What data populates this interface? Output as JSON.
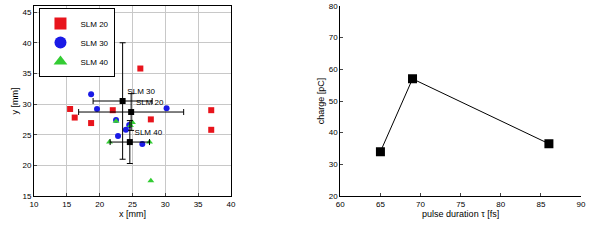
{
  "chart_data": [
    {
      "type": "scatter",
      "xlabel": "x [mm]",
      "ylabel": "y [mm]",
      "xlim": [
        10,
        40
      ],
      "ylim": [
        15,
        46
      ],
      "xticks": [
        10,
        15,
        20,
        25,
        30,
        35,
        40
      ],
      "yticks": [
        15,
        20,
        25,
        30,
        35,
        40,
        45
      ],
      "grid": true,
      "legend": "top left",
      "series": [
        {
          "name": "SLM 20",
          "color": "#e8141c",
          "marker": "square",
          "x": [
            15.5,
            16.2,
            18.7,
            22.0,
            26.2,
            27.8,
            37.0,
            37.0
          ],
          "values": [
            29.2,
            27.8,
            26.9,
            29.0,
            35.8,
            27.5,
            29.0,
            25.8
          ]
        },
        {
          "name": "SLM 30",
          "color": "#1a1ae6",
          "marker": "circle",
          "x": [
            18.7,
            19.6,
            22.5,
            22.8,
            24.0,
            24.5,
            26.5,
            30.2
          ],
          "values": [
            31.6,
            29.2,
            27.4,
            24.8,
            25.8,
            26.6,
            23.5,
            29.3
          ]
        },
        {
          "name": "SLM 40",
          "color": "#33cc33",
          "marker": "triangle-up",
          "x": [
            21.5,
            22.5,
            24.7,
            25.0,
            27.6,
            27.8
          ],
          "values": [
            23.8,
            27.2,
            26.5,
            27.0,
            23.8,
            17.5
          ]
        }
      ],
      "mean_points": {
        "color": "#000000",
        "marker": "square",
        "labels": [
          "SLM 20",
          "SLM 30",
          "SLM 40"
        ],
        "x": [
          24.8,
          23.5,
          24.6
        ],
        "values": [
          28.7,
          30.5,
          23.8
        ],
        "x_error": [
          8.0,
          4.5,
          3.0
        ],
        "y_error": [
          3.0,
          9.5,
          3.5
        ]
      }
    },
    {
      "type": "line",
      "xlabel": "pulse duration τ [fs]",
      "ylabel": "charge [pC]",
      "xlim": [
        60,
        90
      ],
      "ylim": [
        20,
        80
      ],
      "xticks": [
        60,
        65,
        70,
        75,
        80,
        85,
        90
      ],
      "yticks": [
        20,
        30,
        40,
        50,
        60,
        70,
        80
      ],
      "grid": false,
      "color": "#000000",
      "marker": "square",
      "x": [
        65,
        69,
        86
      ],
      "values": [
        34,
        57,
        36.5
      ]
    }
  ]
}
